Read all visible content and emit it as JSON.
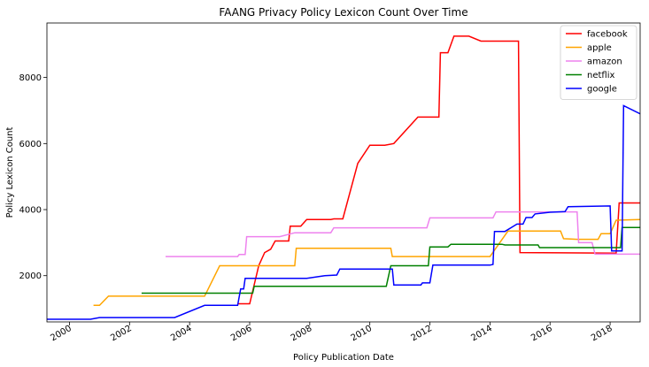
{
  "chart_data": {
    "type": "line",
    "title": "FAANG Privacy Policy Lexicon Count Over Time",
    "xlabel": "Policy Publication Date",
    "ylabel": "Policy Lexicon Count",
    "xlim": [
      1999.25,
      2019.0
    ],
    "ylim": [
      600,
      9650
    ],
    "x_ticks": [
      2000,
      2002,
      2004,
      2006,
      2008,
      2010,
      2012,
      2014,
      2016,
      2018
    ],
    "x_tick_labels": [
      "2000",
      "2002",
      "2004",
      "2006",
      "2008",
      "2010",
      "2012",
      "2014",
      "2016",
      "2018"
    ],
    "y_ticks": [
      2000,
      4000,
      6000,
      8000
    ],
    "y_tick_labels": [
      "2000",
      "4000",
      "6000",
      "8000"
    ],
    "grid": false,
    "legend_position": "top-right",
    "series": [
      {
        "name": "facebook",
        "color": "#ff0000",
        "points": [
          [
            2005.6,
            1150
          ],
          [
            2006.0,
            1150
          ],
          [
            2006.3,
            2300
          ],
          [
            2006.5,
            2700
          ],
          [
            2006.7,
            2800
          ],
          [
            2006.85,
            3050
          ],
          [
            2007.3,
            3050
          ],
          [
            2007.35,
            3500
          ],
          [
            2007.7,
            3500
          ],
          [
            2007.9,
            3700
          ],
          [
            2008.7,
            3700
          ],
          [
            2008.8,
            3720
          ],
          [
            2009.1,
            3720
          ],
          [
            2009.6,
            5400
          ],
          [
            2010.0,
            5950
          ],
          [
            2010.5,
            5950
          ],
          [
            2010.8,
            6000
          ],
          [
            2011.6,
            6800
          ],
          [
            2012.3,
            6800
          ],
          [
            2012.35,
            8750
          ],
          [
            2012.6,
            8750
          ],
          [
            2012.8,
            9250
          ],
          [
            2013.3,
            9250
          ],
          [
            2013.7,
            9100
          ],
          [
            2014.95,
            9100
          ],
          [
            2015.0,
            2700
          ],
          [
            2018.2,
            2680
          ],
          [
            2018.3,
            4200
          ],
          [
            2019.0,
            4200
          ]
        ]
      },
      {
        "name": "apple",
        "color": "#ffa500",
        "points": [
          [
            2000.8,
            1100
          ],
          [
            2001.0,
            1100
          ],
          [
            2001.3,
            1380
          ],
          [
            2004.5,
            1380
          ],
          [
            2005.0,
            2300
          ],
          [
            2007.5,
            2300
          ],
          [
            2007.55,
            2830
          ],
          [
            2010.7,
            2830
          ],
          [
            2010.75,
            2580
          ],
          [
            2014.0,
            2580
          ],
          [
            2014.25,
            2900
          ],
          [
            2014.6,
            3350
          ],
          [
            2016.35,
            3350
          ],
          [
            2016.45,
            3120
          ],
          [
            2016.9,
            3100
          ],
          [
            2017.6,
            3100
          ],
          [
            2017.7,
            3270
          ],
          [
            2018.0,
            3270
          ],
          [
            2018.2,
            3680
          ],
          [
            2019.0,
            3700
          ]
        ]
      },
      {
        "name": "amazon",
        "color": "#ee82ee",
        "points": [
          [
            2003.2,
            2580
          ],
          [
            2005.6,
            2580
          ],
          [
            2005.65,
            2640
          ],
          [
            2005.85,
            2640
          ],
          [
            2005.9,
            3180
          ],
          [
            2007.0,
            3180
          ],
          [
            2007.5,
            3300
          ],
          [
            2008.7,
            3300
          ],
          [
            2008.8,
            3450
          ],
          [
            2011.9,
            3450
          ],
          [
            2012.0,
            3750
          ],
          [
            2014.1,
            3750
          ],
          [
            2014.2,
            3930
          ],
          [
            2016.9,
            3930
          ],
          [
            2016.95,
            3000
          ],
          [
            2017.4,
            3000
          ],
          [
            2017.5,
            2650
          ],
          [
            2019.0,
            2650
          ]
        ]
      },
      {
        "name": "netflix",
        "color": "#008000",
        "points": [
          [
            2002.4,
            1470
          ],
          [
            2006.1,
            1470
          ],
          [
            2006.15,
            1680
          ],
          [
            2010.55,
            1680
          ],
          [
            2010.7,
            2300
          ],
          [
            2011.95,
            2300
          ],
          [
            2012.0,
            2870
          ],
          [
            2012.6,
            2870
          ],
          [
            2012.7,
            2950
          ],
          [
            2014.4,
            2950
          ],
          [
            2014.5,
            2930
          ],
          [
            2015.6,
            2930
          ],
          [
            2015.65,
            2850
          ],
          [
            2018.35,
            2850
          ],
          [
            2018.4,
            3460
          ],
          [
            2019.0,
            3460
          ]
        ]
      },
      {
        "name": "google",
        "color": "#0000ff",
        "points": [
          [
            1999.25,
            680
          ],
          [
            2000.7,
            680
          ],
          [
            2001.0,
            730
          ],
          [
            2003.5,
            730
          ],
          [
            2004.5,
            1100
          ],
          [
            2005.6,
            1100
          ],
          [
            2005.7,
            1600
          ],
          [
            2005.8,
            1600
          ],
          [
            2005.85,
            1920
          ],
          [
            2007.9,
            1920
          ],
          [
            2008.5,
            2000
          ],
          [
            2008.9,
            2020
          ],
          [
            2009.0,
            2200
          ],
          [
            2010.75,
            2200
          ],
          [
            2010.8,
            1720
          ],
          [
            2011.7,
            1720
          ],
          [
            2011.75,
            1780
          ],
          [
            2012.0,
            1780
          ],
          [
            2012.1,
            2320
          ],
          [
            2014.0,
            2320
          ],
          [
            2014.1,
            2340
          ],
          [
            2014.15,
            3340
          ],
          [
            2014.5,
            3340
          ],
          [
            2014.9,
            3560
          ],
          [
            2015.1,
            3560
          ],
          [
            2015.2,
            3760
          ],
          [
            2015.4,
            3760
          ],
          [
            2015.5,
            3870
          ],
          [
            2016.0,
            3920
          ],
          [
            2016.5,
            3940
          ],
          [
            2016.6,
            4090
          ],
          [
            2018.0,
            4110
          ],
          [
            2018.05,
            2750
          ],
          [
            2018.4,
            2750
          ],
          [
            2018.45,
            7150
          ],
          [
            2019.0,
            6900
          ]
        ]
      }
    ]
  }
}
